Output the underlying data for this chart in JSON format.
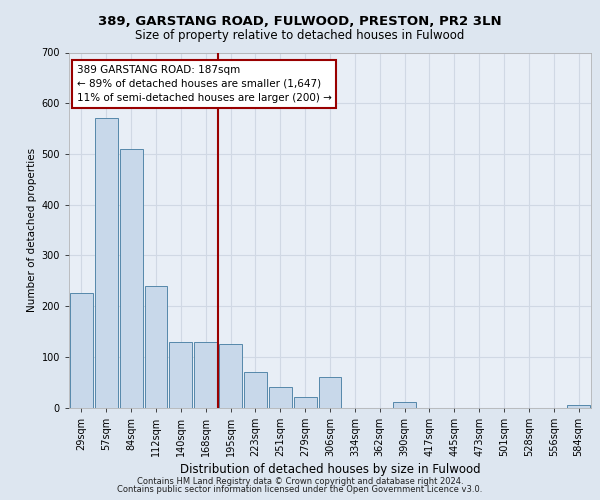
{
  "title1": "389, GARSTANG ROAD, FULWOOD, PRESTON, PR2 3LN",
  "title2": "Size of property relative to detached houses in Fulwood",
  "xlabel": "Distribution of detached houses by size in Fulwood",
  "ylabel": "Number of detached properties",
  "footer1": "Contains HM Land Registry data © Crown copyright and database right 2024.",
  "footer2": "Contains public sector information licensed under the Open Government Licence v3.0.",
  "annotation_line1": "389 GARSTANG ROAD: 187sqm",
  "annotation_line2": "← 89% of detached houses are smaller (1,647)",
  "annotation_line3": "11% of semi-detached houses are larger (200) →",
  "bar_color": "#c8d8ea",
  "bar_edge_color": "#5588aa",
  "ref_line_color": "#990000",
  "bg_color": "#dde6f0",
  "plot_bg_color": "#e8eef6",
  "grid_color": "#d0d8e4",
  "categories": [
    "29sqm",
    "57sqm",
    "84sqm",
    "112sqm",
    "140sqm",
    "168sqm",
    "195sqm",
    "223sqm",
    "251sqm",
    "279sqm",
    "306sqm",
    "334sqm",
    "362sqm",
    "390sqm",
    "417sqm",
    "445sqm",
    "473sqm",
    "501sqm",
    "528sqm",
    "556sqm",
    "584sqm"
  ],
  "values": [
    225,
    570,
    510,
    240,
    130,
    130,
    125,
    70,
    40,
    20,
    60,
    0,
    0,
    10,
    0,
    0,
    0,
    0,
    0,
    0,
    5
  ],
  "ylim": [
    0,
    700
  ],
  "yticks": [
    0,
    100,
    200,
    300,
    400,
    500,
    600,
    700
  ],
  "ref_bar_index": 6,
  "title1_fontsize": 9.5,
  "title2_fontsize": 8.5,
  "ylabel_fontsize": 7.5,
  "xlabel_fontsize": 8.5,
  "tick_fontsize": 7.0,
  "footer_fontsize": 6.0,
  "annot_fontsize": 7.5
}
